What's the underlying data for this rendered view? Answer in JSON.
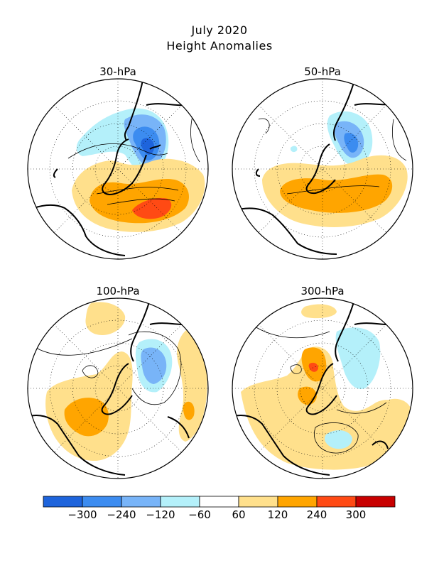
{
  "title_line1": "July 2020",
  "title_line2": "Height Anomalies",
  "panels": [
    {
      "label": "30-hPa"
    },
    {
      "label": "50-hPa"
    },
    {
      "label": "100-hPa"
    },
    {
      "label": "300-hPa"
    }
  ],
  "colorbar": {
    "colors": [
      "#1e64dc",
      "#3c8cf0",
      "#78b4f8",
      "#b4f0fa",
      "#ffffff",
      "#ffe08c",
      "#ffa500",
      "#ff4a14",
      "#c80000"
    ],
    "tick_labels": [
      "-300",
      "-240",
      "-120",
      "-60",
      "60",
      "120",
      "240",
      "300"
    ]
  },
  "fill_colors": {
    "neg1": "#b4f0fa",
    "neg2": "#78b4f8",
    "neg3": "#3c8cf0",
    "neg4": "#1e64dc",
    "pos1": "#ffe08c",
    "pos2": "#ffa500",
    "pos3": "#ff4a14"
  }
}
